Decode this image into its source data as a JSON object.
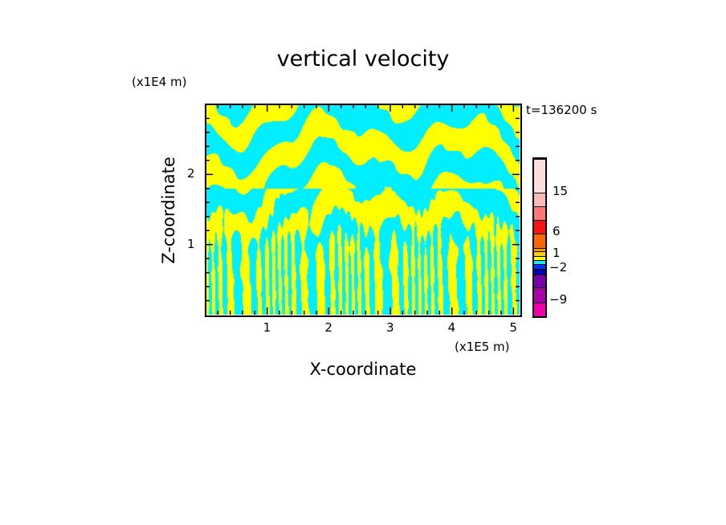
{
  "chart_data": {
    "type": "heatmap",
    "title": "vertical velocity",
    "xlabel": "X-coordinate",
    "ylabel": "Z-coordinate",
    "x_unit": "(x1E5 m)",
    "y_unit": "(x1E4 m)",
    "annotation": "t=136200 s",
    "xlim": [
      0,
      5.1
    ],
    "ylim": [
      0,
      3.0
    ],
    "x_ticks": [
      "1",
      "2",
      "3",
      "4",
      "5"
    ],
    "y_ticks": [
      "1",
      "2"
    ],
    "x_tick_values": [
      1,
      2,
      3,
      4,
      5
    ],
    "y_tick_values": [
      1,
      2
    ],
    "dominant_colors": {
      "positive": "#ffff00",
      "negative": "#00eeff"
    },
    "colorbar": {
      "tick_labels": [
        "15",
        "6",
        "1",
        "-2",
        "-9"
      ],
      "levels_bottom_to_top": [
        "#ee00aa",
        "#aa00aa",
        "#7700aa",
        "#0000aa",
        "#0033ff",
        "#00eeff",
        "#ffff00",
        "#ffcc00",
        "#ff9900",
        "#ff6600",
        "#ff1111",
        "#ff7777",
        "#ffb8b8",
        "#ffdddd"
      ]
    }
  }
}
